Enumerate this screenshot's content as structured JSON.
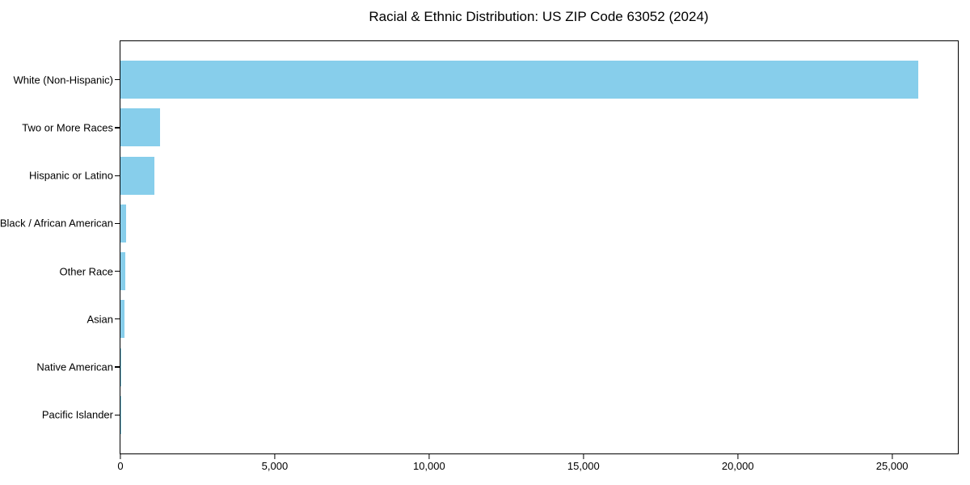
{
  "title": "Racial & Ethnic Distribution: US ZIP Code 63052 (2024)",
  "chart_data": {
    "type": "bar",
    "orientation": "horizontal",
    "title": "Racial & Ethnic Distribution: US ZIP Code 63052 (2024)",
    "xlabel": "",
    "ylabel": "",
    "categories": [
      "White (Non-Hispanic)",
      "Two or More Races",
      "Hispanic or Latino",
      "Black / African American",
      "Other Race",
      "Asian",
      "Native American",
      "Pacific Islander"
    ],
    "values": [
      25840,
      1285,
      1095,
      185,
      155,
      130,
      15,
      4
    ],
    "xlim": [
      0,
      27130
    ],
    "x_ticks": [
      0,
      5000,
      10000,
      15000,
      20000,
      25000
    ],
    "x_tick_labels": [
      "0",
      "5,000",
      "10,000",
      "15,000",
      "20,000",
      "25,000"
    ],
    "bar_color": "#87CEEB",
    "axis_color": "#000000",
    "background_color": "#ffffff",
    "grid": false,
    "legend": null
  }
}
